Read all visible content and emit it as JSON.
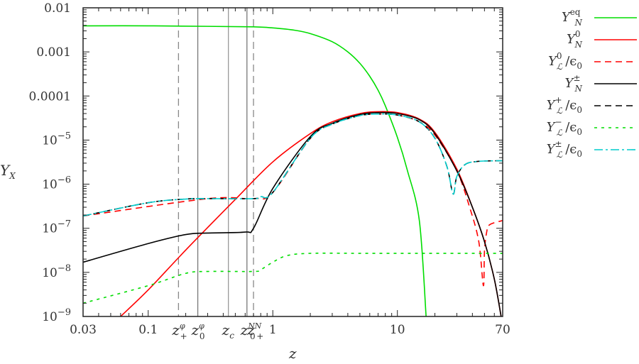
{
  "chart_data": {
    "type": "line",
    "title": "",
    "xlabel": "z",
    "ylabel": "Y_X",
    "xscale": "log",
    "yscale": "log",
    "xlim": [
      0.03,
      70
    ],
    "ylim": [
      1e-09,
      0.01
    ],
    "grid": false,
    "legend_position": "outside-right-top",
    "x_ticks": [
      {
        "value": 0.03,
        "label": "0.03"
      },
      {
        "value": 0.1,
        "label": "0.1"
      },
      {
        "value": 1,
        "label": "1"
      },
      {
        "value": 10,
        "label": "10"
      },
      {
        "value": 70,
        "label": "70"
      }
    ],
    "x_special_ticks": [
      {
        "value": 0.175,
        "label": "z_+^φ",
        "style": "dashed"
      },
      {
        "value": 0.25,
        "label": "z_0^φ",
        "style": "solid"
      },
      {
        "value": 0.44,
        "label": "z_c",
        "style": "solid-light"
      },
      {
        "value": 0.62,
        "label": "z_0^N",
        "style": "solid"
      },
      {
        "value": 0.7,
        "label": "z_+^N",
        "style": "dashed"
      }
    ],
    "y_ticks": [
      {
        "value": 0.01,
        "label": "0.01"
      },
      {
        "value": 0.001,
        "label": "0.001"
      },
      {
        "value": 0.0001,
        "label": "0.0001"
      },
      {
        "value": 1e-05,
        "label": "10^-5"
      },
      {
        "value": 1e-06,
        "label": "10^-6"
      },
      {
        "value": 1e-07,
        "label": "10^-7"
      },
      {
        "value": 1e-08,
        "label": "10^-8"
      },
      {
        "value": 1e-09,
        "label": "10^-9"
      }
    ],
    "series": [
      {
        "name": "Y_N^eq",
        "color": "#00dd00",
        "dash": "solid",
        "x": [
          0.03,
          0.1,
          0.3,
          0.7,
          1.0,
          1.5,
          2,
          3,
          4,
          5,
          6,
          7,
          8,
          10,
          12,
          15,
          17
        ],
        "y": [
          0.0039,
          0.0039,
          0.0038,
          0.0037,
          0.0035,
          0.0031,
          0.0026,
          0.0017,
          0.001,
          0.00055,
          0.00028,
          0.000135,
          6e-05,
          1.15e-05,
          2.1e-06,
          1.5e-07,
          1e-09
        ]
      },
      {
        "name": "Y_N^0",
        "color": "#ff0000",
        "dash": "solid",
        "x": [
          0.06,
          0.1,
          0.2,
          0.5,
          1.0,
          2,
          3,
          5,
          7,
          10,
          15,
          20,
          30,
          40,
          50,
          60,
          68
        ],
        "y": [
          1e-09,
          4e-09,
          3.2e-08,
          4.5e-07,
          3.2e-06,
          1.4e-05,
          2.6e-05,
          4e-05,
          4.4e-05,
          4.2e-05,
          3e-05,
          1.5e-05,
          2.2e-06,
          3e-07,
          5e-08,
          7e-09,
          1e-09
        ]
      },
      {
        "name": "Y_L^0/ε0",
        "color": "#ff0000",
        "dash": "dashed",
        "x": [
          0.03,
          0.3,
          0.7,
          1.0,
          2,
          3,
          5,
          7,
          10,
          15,
          20,
          30,
          38,
          45,
          49,
          50,
          52,
          55,
          70
        ],
        "y": [
          1.9e-07,
          4.7e-07,
          4.7e-07,
          6.5e-07,
          1.1e-05,
          2.3e-05,
          3.6e-05,
          3.9e-05,
          3.7e-05,
          2.6e-05,
          1.3e-05,
          2e-06,
          3e-07,
          5e-08,
          5e-09,
          3e-08,
          8e-08,
          1.2e-07,
          1.5e-07
        ]
      },
      {
        "name": "Y_N^±",
        "color": "#000000",
        "dash": "solid",
        "x": [
          0.03,
          0.1,
          0.2,
          0.3,
          0.6,
          0.7,
          1.0,
          2,
          3,
          5,
          7,
          10,
          15,
          20,
          30,
          40,
          50,
          60,
          68
        ],
        "y": [
          1.7e-08,
          4.5e-08,
          7.2e-08,
          7.8e-08,
          8.2e-08,
          1e-07,
          8e-07,
          1.2e-05,
          2.4e-05,
          3.8e-05,
          4.2e-05,
          4e-05,
          2.9e-05,
          1.4e-05,
          2e-06,
          3e-07,
          5e-08,
          7e-09,
          1e-09
        ]
      },
      {
        "name": "Y_L^+/ε0",
        "color": "#000000",
        "dash": "dashed",
        "x": [
          0.03,
          0.1,
          0.2,
          0.3,
          0.7,
          0.8,
          1.0,
          2,
          3,
          5,
          7,
          10,
          15,
          20,
          25,
          28,
          30,
          35,
          45,
          70
        ],
        "y": [
          1.9e-07,
          3.8e-07,
          4.6e-07,
          4.7e-07,
          4.7e-07,
          5.2e-07,
          6.5e-07,
          1.1e-05,
          2.3e-05,
          3.6e-05,
          3.9e-05,
          3.7e-05,
          2.6e-05,
          1.1e-05,
          2.5e-06,
          6e-07,
          1.5e-06,
          2.8e-06,
          3.3e-06,
          3.4e-06
        ]
      },
      {
        "name": "Y_L^-/ε0",
        "color": "#00dd00",
        "dash": "dotted",
        "x": [
          0.03,
          0.1,
          0.2,
          0.3,
          0.7,
          0.8,
          1.0,
          1.3,
          2,
          5,
          10,
          70
        ],
        "y": [
          2e-09,
          5e-09,
          9.5e-09,
          1.05e-08,
          1.05e-08,
          1.15e-08,
          1.7e-08,
          2.4e-08,
          2.7e-08,
          2.7e-08,
          2.7e-08,
          2.7e-08
        ]
      },
      {
        "name": "Y_L^±/ε0",
        "color": "#00cccc",
        "dash": "dashdot",
        "x": [
          0.03,
          0.1,
          0.2,
          0.3,
          0.7,
          0.8,
          1.0,
          2,
          3,
          5,
          7,
          10,
          15,
          20,
          25,
          28,
          30,
          35,
          45,
          70
        ],
        "y": [
          1.9e-07,
          3.8e-07,
          4.6e-07,
          4.7e-07,
          4.7e-07,
          5.2e-07,
          6.5e-07,
          1.1e-05,
          2.3e-05,
          3.6e-05,
          3.9e-05,
          3.7e-05,
          2.6e-05,
          1.1e-05,
          2.5e-06,
          6e-07,
          1.5e-06,
          2.8e-06,
          3.3e-06,
          3.4e-06
        ]
      }
    ]
  },
  "axes": {
    "xlabel": "z",
    "ylabel_main": "Y",
    "ylabel_sub": "X",
    "y_tick_labels": [
      "0.01",
      "0.001",
      "0.0001",
      "10",
      "10",
      "10",
      "10",
      "10"
    ],
    "y_tick_exps": [
      "",
      "",
      "",
      "−5",
      "−6",
      "−7",
      "−8",
      "−9"
    ],
    "x_tick_labels": [
      "0.03",
      "0.1",
      "1",
      "10",
      "70"
    ]
  },
  "special_ticks": [
    {
      "main": "z",
      "sup": "φ",
      "sub": "+"
    },
    {
      "main": "z",
      "sup": "φ",
      "sub": "0"
    },
    {
      "main": "z",
      "sup": "",
      "sub": "c"
    },
    {
      "main": "z",
      "sup": "N",
      "sub": "0"
    },
    {
      "main": "z",
      "sup": "N",
      "sub": "+"
    }
  ],
  "legend": [
    {
      "main": "Y",
      "sup": "eq",
      "sub": "N",
      "tail": "",
      "color": "#00dd00",
      "dash": ""
    },
    {
      "main": "Y",
      "sup": "0",
      "sub": "N",
      "tail": "",
      "color": "#ff0000",
      "dash": ""
    },
    {
      "main": "Y",
      "sup": "0",
      "sub": "ℒ",
      "tail": "/ϵ",
      "tail_sub": "0",
      "color": "#ff0000",
      "dash": "9,6"
    },
    {
      "main": "Y",
      "sup": "±",
      "sub": "N",
      "tail": "",
      "color": "#000000",
      "dash": ""
    },
    {
      "main": "Y",
      "sup": "+",
      "sub": "ℒ",
      "tail": "/ϵ",
      "tail_sub": "0",
      "color": "#000000",
      "dash": "9,6"
    },
    {
      "main": "Y",
      "sup": "−",
      "sub": "ℒ",
      "tail": "/ϵ",
      "tail_sub": "0",
      "color": "#00dd00",
      "dash": "4,6"
    },
    {
      "main": "Y",
      "sup": "±",
      "sub": "ℒ",
      "tail": "/ϵ",
      "tail_sub": "0",
      "color": "#00cccc",
      "dash": "12,4,3,4"
    }
  ]
}
